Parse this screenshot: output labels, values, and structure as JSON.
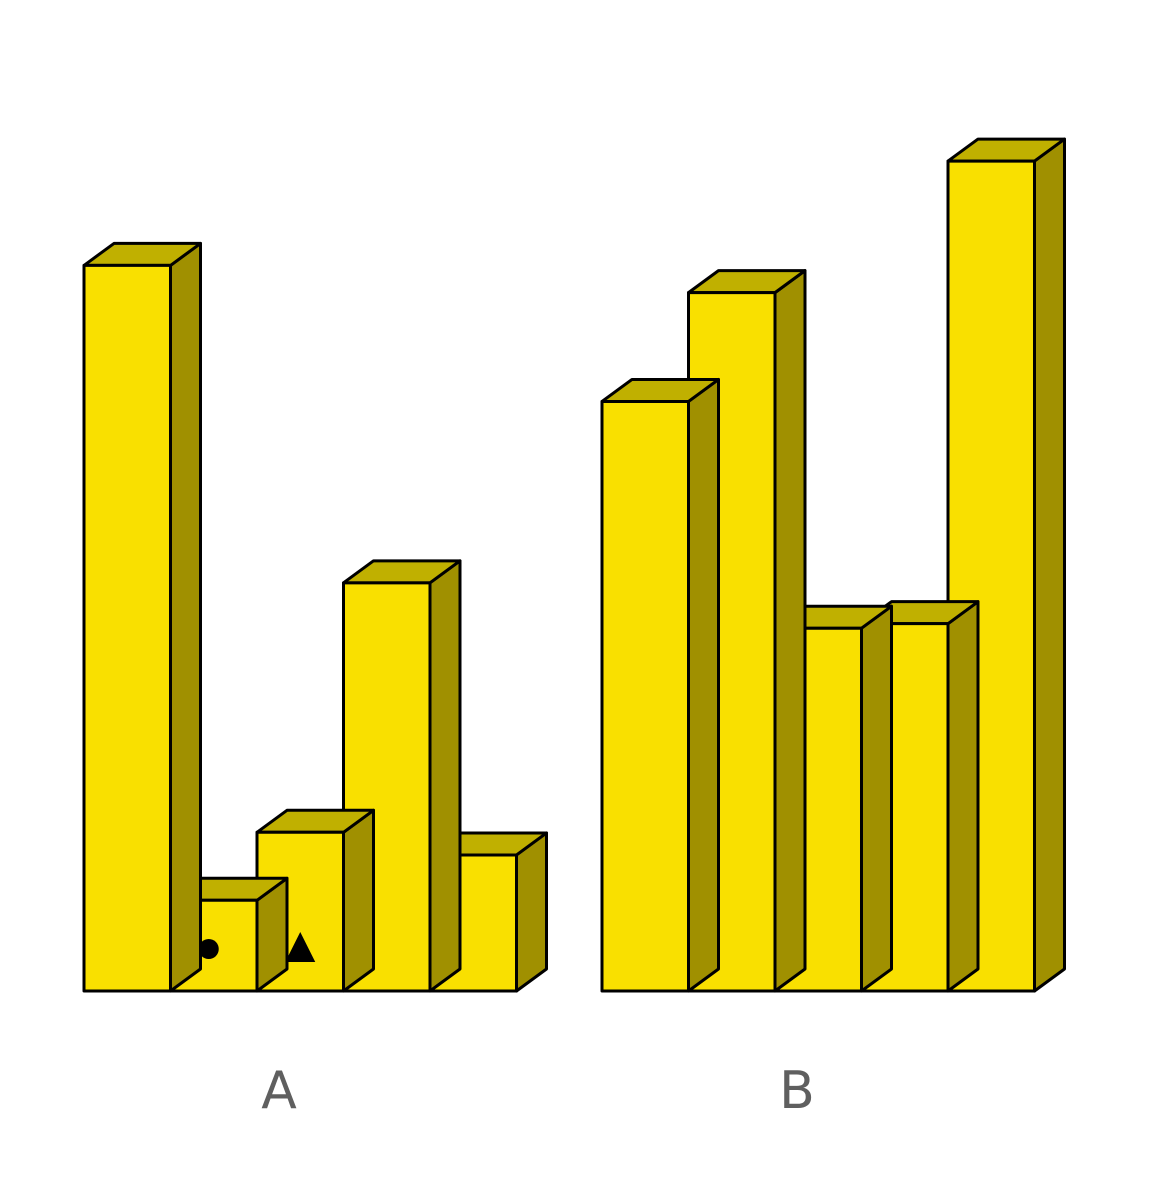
{
  "colors": {
    "front": "#f9e000",
    "top": "#c0b000",
    "side": "#a09000",
    "stroke": "#000000",
    "label": "#5f5f5f",
    "marker": "#000000"
  },
  "groups": [
    {
      "label": "A",
      "heights": [
        8,
        1,
        1.75,
        4.5,
        1.5
      ],
      "markers": [
        {
          "bar": 1,
          "shape": "circle"
        },
        {
          "bar": 2,
          "shape": "triangle"
        }
      ]
    },
    {
      "label": "B",
      "heights": [
        6.5,
        7.7,
        4,
        4.05,
        9.15
      ],
      "markers": []
    }
  ]
}
